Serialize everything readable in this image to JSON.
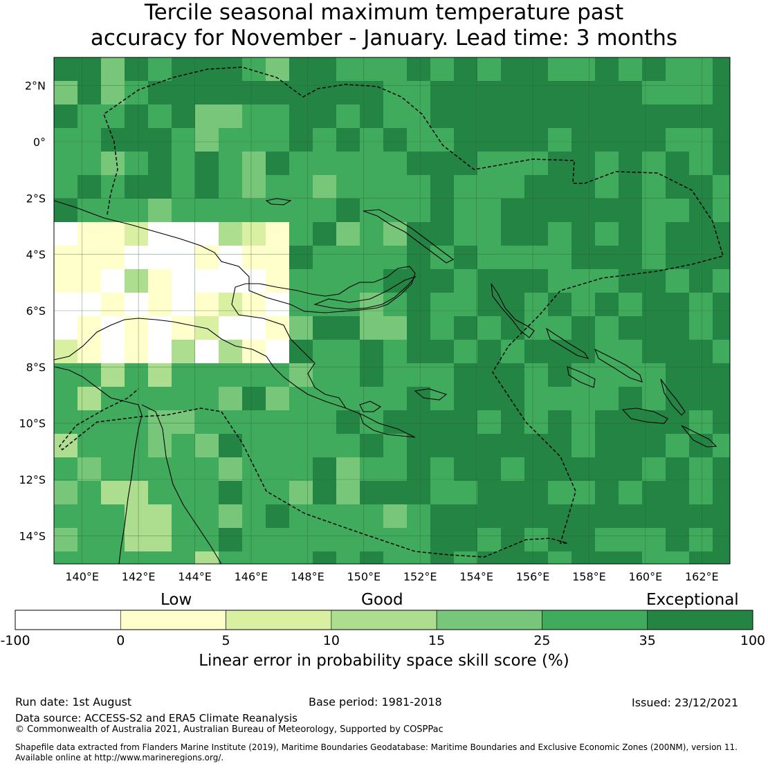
{
  "title": {
    "line1": "Tercile seasonal maximum temperature past",
    "line2": "accuracy for November - January. Lead time: 3 months"
  },
  "map": {
    "lon_range": [
      139,
      163
    ],
    "lat_range": [
      -15,
      3
    ],
    "lon_ticks": [
      {
        "value": 140,
        "label": "140°E"
      },
      {
        "value": 142,
        "label": "142°E"
      },
      {
        "value": 144,
        "label": "144°E"
      },
      {
        "value": 146,
        "label": "146°E"
      },
      {
        "value": 148,
        "label": "148°E"
      },
      {
        "value": 150,
        "label": "150°E"
      },
      {
        "value": 152,
        "label": "152°E"
      },
      {
        "value": 154,
        "label": "154°E"
      },
      {
        "value": 156,
        "label": "156°E"
      },
      {
        "value": 158,
        "label": "158°E"
      },
      {
        "value": 160,
        "label": "160°E"
      },
      {
        "value": 162,
        "label": "162°E"
      }
    ],
    "lat_ticks": [
      {
        "value": 2,
        "label": "2°N"
      },
      {
        "value": 0,
        "label": "0°"
      },
      {
        "value": -2,
        "label": "2°S"
      },
      {
        "value": -4,
        "label": "4°S"
      },
      {
        "value": -6,
        "label": "6°S"
      },
      {
        "value": -8,
        "label": "8°S"
      },
      {
        "value": -10,
        "label": "10°S"
      },
      {
        "value": -12,
        "label": "12°S"
      },
      {
        "value": -14,
        "label": "14°S"
      }
    ],
    "grid": true,
    "eez_boundaries": "dashed"
  },
  "legend": {
    "categories": [
      {
        "label": "Low"
      },
      {
        "label": "Good"
      },
      {
        "label": "Exceptional"
      }
    ],
    "bins": [
      {
        "from": -100,
        "to": 0,
        "color": "#ffffff"
      },
      {
        "from": 0,
        "to": 5,
        "color": "#ffffcc"
      },
      {
        "from": 5,
        "to": 10,
        "color": "#d9f0a3"
      },
      {
        "from": 10,
        "to": 15,
        "color": "#addd8e"
      },
      {
        "from": 15,
        "to": 25,
        "color": "#78c679"
      },
      {
        "from": 25,
        "to": 35,
        "color": "#41ab5d"
      },
      {
        "from": 35,
        "to": 100,
        "color": "#238443"
      }
    ],
    "tick_labels": [
      "-100",
      "0",
      "5",
      "10",
      "15",
      "25",
      "35",
      "100"
    ],
    "label": "Linear error in probability space skill score (%)"
  },
  "footer": {
    "run_date": "Run date: 1st August",
    "base_period": "Base period: 1981-2018",
    "issued": "Issued: 23/12/2021",
    "data_source": "Data source: ACCESS-S2 and ERA5 Climate Reanalysis",
    "copyright": "© Commonwealth of Australia 2021, Australian Bureau of Meteorology, Supported by COSPPac",
    "shapefile1": "Shapefile data extracted from Flanders Marine Institute (2019), Maritime Boundaries Geodatabase: Maritime Boundaries and Exclusive Economic Zones (200NM), version 11.",
    "shapefile2": "Available online at http://www.marineregions.org/."
  }
}
